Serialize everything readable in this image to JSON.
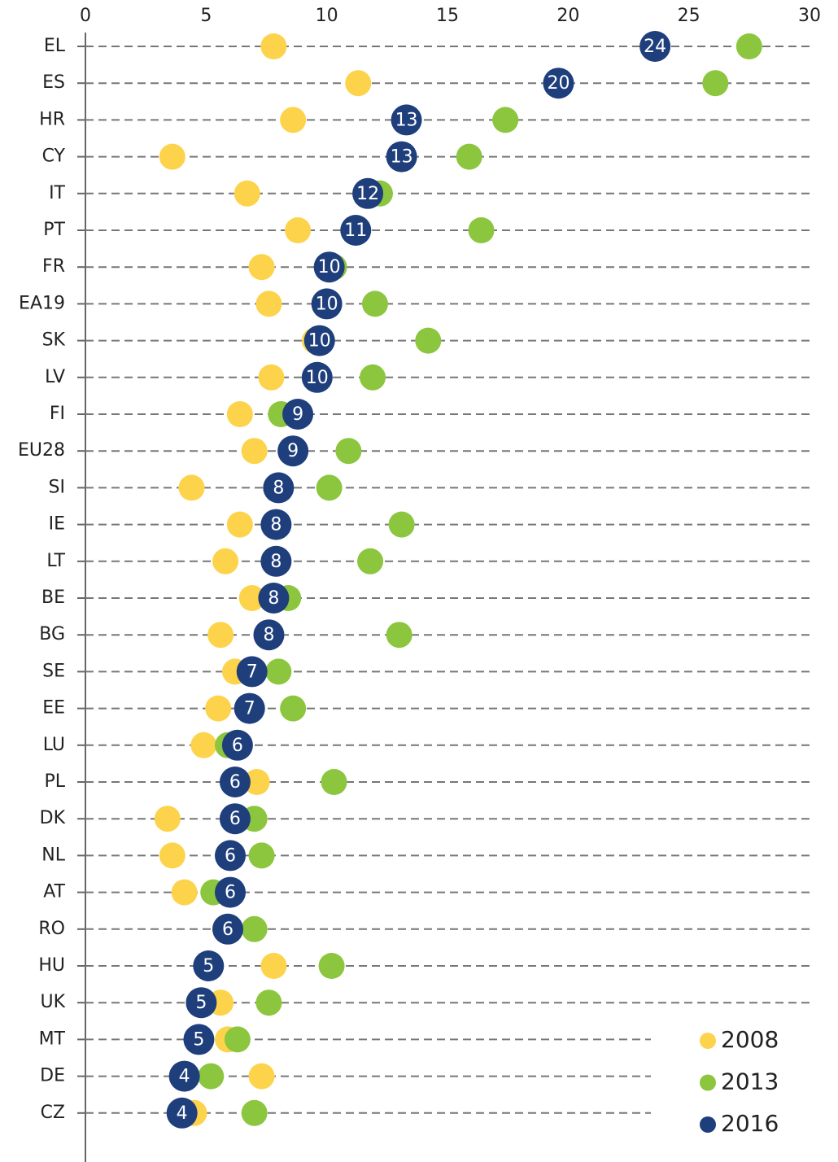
{
  "chart_data": {
    "type": "dot",
    "categories": [
      "EL",
      "ES",
      "HR",
      "CY",
      "IT",
      "PT",
      "FR",
      "EA19",
      "SK",
      "LV",
      "FI",
      "EU28",
      "SI",
      "IE",
      "LT",
      "BE",
      "BG",
      "SE",
      "EE",
      "LU",
      "PL",
      "DK",
      "NL",
      "AT",
      "RO",
      "HU",
      "UK",
      "MT",
      "DE",
      "CZ"
    ],
    "series": [
      {
        "name": "2008",
        "color": "#fdd34c",
        "values": [
          7.8,
          11.3,
          8.6,
          3.6,
          6.7,
          8.8,
          7.3,
          7.6,
          9.5,
          7.7,
          6.4,
          7.0,
          4.4,
          6.4,
          5.8,
          6.9,
          5.6,
          6.2,
          5.5,
          4.9,
          7.1,
          3.4,
          3.6,
          4.1,
          5.8,
          7.8,
          5.6,
          5.9,
          7.3,
          4.5
        ]
      },
      {
        "name": "2013",
        "color": "#8cc63f",
        "values": [
          27.5,
          26.1,
          17.4,
          15.9,
          12.2,
          16.4,
          10.3,
          12.0,
          14.2,
          11.9,
          8.1,
          10.9,
          10.1,
          13.1,
          11.8,
          8.4,
          13.0,
          8.0,
          8.6,
          5.9,
          10.3,
          7.0,
          7.3,
          5.3,
          7.0,
          10.2,
          7.6,
          6.3,
          5.2,
          7.0
        ]
      },
      {
        "name": "2016",
        "color": "#1f3f7c",
        "values": [
          23.6,
          19.6,
          13.3,
          13.1,
          11.7,
          11.2,
          10.1,
          10.0,
          9.7,
          9.6,
          8.8,
          8.6,
          8.0,
          7.9,
          7.9,
          7.8,
          7.6,
          6.9,
          6.8,
          6.3,
          6.2,
          6.2,
          6.0,
          6.0,
          5.9,
          5.1,
          4.8,
          4.7,
          4.1,
          4.0
        ],
        "value_labels": [
          "24",
          "20",
          "13",
          "13",
          "12",
          "11",
          "10",
          "10",
          "10",
          "10",
          "9",
          "9",
          "8",
          "8",
          "8",
          "8",
          "8",
          "7",
          "7",
          "6",
          "6",
          "6",
          "6",
          "6",
          "6",
          "5",
          "5",
          "5",
          "4",
          "4"
        ]
      }
    ],
    "xlim": [
      0,
      30
    ],
    "xticks": [
      0,
      5,
      10,
      15,
      20,
      25,
      30
    ],
    "grid": true,
    "legend": "lower right"
  }
}
